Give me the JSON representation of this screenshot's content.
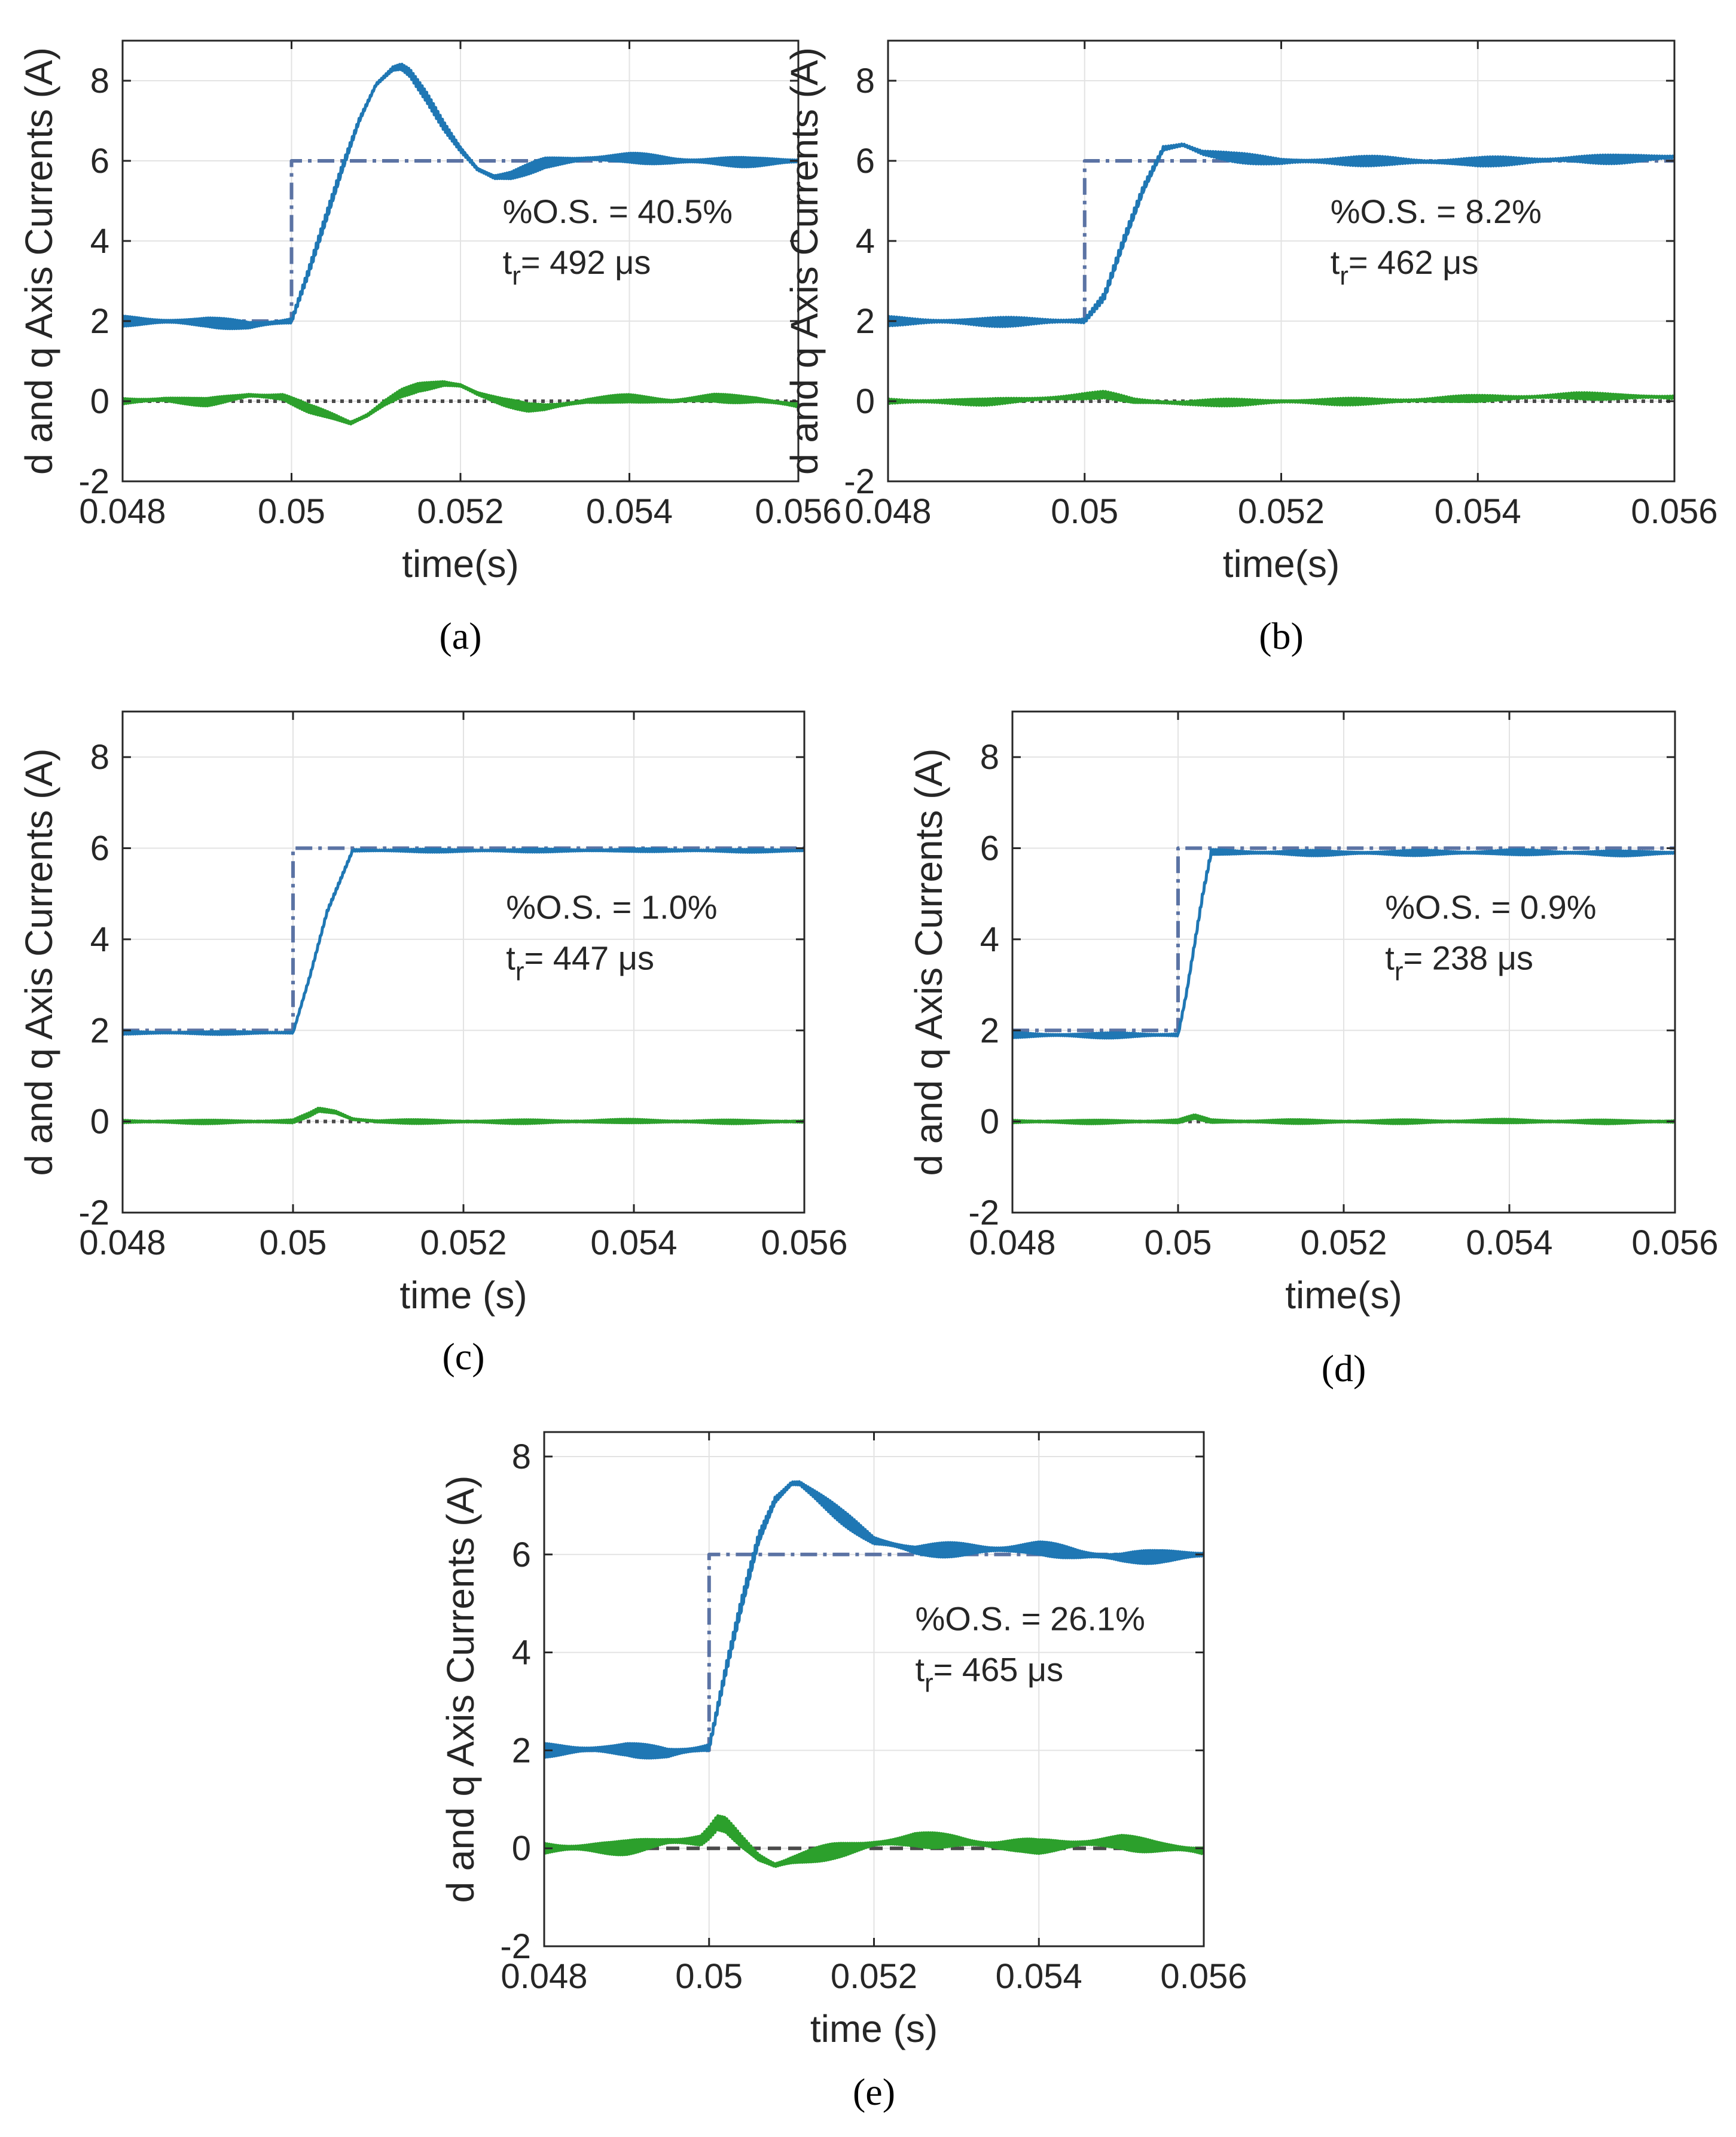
{
  "figure": {
    "colors": {
      "iq_actual": "#1f77b4",
      "iq_reference": "#5b73a4",
      "id_actual": "#2ca02c",
      "id_reference": "#4a4a4a",
      "grid": "#e3e3e3",
      "axis": "#262626"
    }
  },
  "chart_data": [
    {
      "id": "a",
      "type": "line",
      "caption": "(a)",
      "xlabel": "time(s)",
      "ylabel": "d and q Axis Currents (A)",
      "xlim": [
        0.048,
        0.056
      ],
      "ylim": [
        -2,
        9
      ],
      "xticks": [
        0.048,
        0.05,
        0.052,
        0.054,
        0.056
      ],
      "xtick_labels": [
        "0.048",
        "0.05",
        "0.052",
        "0.054",
        "0.056"
      ],
      "yticks": [
        -2,
        0,
        2,
        4,
        6,
        8
      ],
      "ytick_labels": [
        "-2",
        "0",
        "2",
        "4",
        "6",
        "8"
      ],
      "grid": true,
      "annotation": {
        "os_text": "%O.S. = 40.5%",
        "tr_prefix": "t",
        "tr_sub": "r",
        "tr_rest": "= 492 μs"
      },
      "series": [
        {
          "name": "iq reference",
          "style": "dashdot",
          "color_key": "iq_reference",
          "x": [
            0.048,
            0.05,
            0.05,
            0.056
          ],
          "y": [
            2,
            2,
            6,
            6
          ]
        },
        {
          "name": "id reference",
          "style": "dotted",
          "color_key": "id_reference",
          "x": [
            0.048,
            0.056
          ],
          "y": [
            0,
            0
          ]
        },
        {
          "name": "iq actual",
          "style": "solid",
          "color_key": "iq_actual",
          "x": [
            0.048,
            0.0485,
            0.049,
            0.0495,
            0.05,
            0.0502,
            0.0504,
            0.0506,
            0.0508,
            0.051,
            0.0512,
            0.0513,
            0.0514,
            0.0516,
            0.0518,
            0.052,
            0.0522,
            0.0524,
            0.0526,
            0.0528,
            0.053,
            0.0535,
            0.054,
            0.0545,
            0.055,
            0.0555,
            0.056
          ],
          "y": [
            2.0,
            2.0,
            2.0,
            1.9,
            2.0,
            3.2,
            4.5,
            5.8,
            7.0,
            7.9,
            8.3,
            8.35,
            8.2,
            7.6,
            6.9,
            6.3,
            5.8,
            5.6,
            5.65,
            5.8,
            5.95,
            6.05,
            6.05,
            6.0,
            6.0,
            6.0,
            6.0
          ],
          "ripple": 0.15
        },
        {
          "name": "id actual",
          "style": "solid",
          "color_key": "id_actual",
          "x": [
            0.048,
            0.0485,
            0.049,
            0.0495,
            0.0499,
            0.0502,
            0.0505,
            0.0507,
            0.0509,
            0.0511,
            0.0513,
            0.0515,
            0.0518,
            0.052,
            0.0522,
            0.0525,
            0.0528,
            0.053,
            0.0535,
            0.054,
            0.0545,
            0.055,
            0.0555,
            0.056
          ],
          "y": [
            0.0,
            0.05,
            0.0,
            0.15,
            0.1,
            -0.2,
            -0.4,
            -0.55,
            -0.35,
            -0.05,
            0.2,
            0.35,
            0.45,
            0.4,
            0.2,
            0.0,
            -0.15,
            -0.15,
            0.0,
            0.05,
            0.0,
            0.1,
            0.05,
            -0.1
          ],
          "ripple": 0.12
        }
      ]
    },
    {
      "id": "b",
      "type": "line",
      "caption": "(b)",
      "xlabel": "time(s)",
      "ylabel": "d and q Axis Currents (A)",
      "xlim": [
        0.048,
        0.056
      ],
      "ylim": [
        -2,
        9
      ],
      "xticks": [
        0.048,
        0.05,
        0.052,
        0.054,
        0.056
      ],
      "xtick_labels": [
        "0.048",
        "0.05",
        "0.052",
        "0.054",
        "0.056"
      ],
      "yticks": [
        -2,
        0,
        2,
        4,
        6,
        8
      ],
      "ytick_labels": [
        "-2",
        "0",
        "2",
        "4",
        "6",
        "8"
      ],
      "grid": true,
      "annotation": {
        "os_text": "%O.S. = 8.2%",
        "tr_prefix": "t",
        "tr_sub": "r",
        "tr_rest": "= 462 μs"
      },
      "series": [
        {
          "name": "iq reference",
          "style": "dashdot",
          "color_key": "iq_reference",
          "x": [
            0.048,
            0.05,
            0.05,
            0.056
          ],
          "y": [
            2,
            2,
            6,
            6
          ]
        },
        {
          "name": "id reference",
          "style": "dotted",
          "color_key": "id_reference",
          "x": [
            0.048,
            0.056
          ],
          "y": [
            0,
            0
          ]
        },
        {
          "name": "iq actual",
          "style": "solid",
          "color_key": "iq_actual",
          "x": [
            0.048,
            0.049,
            0.05,
            0.0502,
            0.0504,
            0.0506,
            0.0508,
            0.051,
            0.0512,
            0.0515,
            0.052,
            0.053,
            0.054,
            0.055,
            0.056
          ],
          "y": [
            2.0,
            2.0,
            2.0,
            2.6,
            4.0,
            5.3,
            6.3,
            6.4,
            6.2,
            6.1,
            6.0,
            6.0,
            5.95,
            6.05,
            6.1
          ],
          "ripple": 0.14
        },
        {
          "name": "id actual",
          "style": "solid",
          "color_key": "id_actual",
          "x": [
            0.048,
            0.049,
            0.0499,
            0.0502,
            0.0505,
            0.051,
            0.052,
            0.053,
            0.054,
            0.055,
            0.056
          ],
          "y": [
            0.0,
            0.0,
            0.1,
            0.15,
            0.0,
            -0.05,
            0.0,
            0.0,
            0.05,
            0.15,
            0.1
          ],
          "ripple": 0.1
        }
      ]
    },
    {
      "id": "c",
      "type": "line",
      "caption": "(c)",
      "xlabel": "time (s)",
      "ylabel": "d and q Axis Currents (A)",
      "xlim": [
        0.048,
        0.056
      ],
      "ylim": [
        -2,
        9
      ],
      "xticks": [
        0.048,
        0.05,
        0.052,
        0.054,
        0.056
      ],
      "xtick_labels": [
        "0.048",
        "0.05",
        "0.052",
        "0.054",
        "0.056"
      ],
      "yticks": [
        -2,
        0,
        2,
        4,
        6,
        8
      ],
      "ytick_labels": [
        "-2",
        "0",
        "2",
        "4",
        "6",
        "8"
      ],
      "grid": true,
      "annotation": {
        "os_text": "%O.S. = 1.0%",
        "tr_prefix": "t",
        "tr_sub": "r",
        "tr_rest": "= 447 μs"
      },
      "series": [
        {
          "name": "iq reference",
          "style": "dashdot",
          "color_key": "iq_reference",
          "x": [
            0.048,
            0.05,
            0.05,
            0.056
          ],
          "y": [
            2,
            2,
            6,
            6
          ]
        },
        {
          "name": "id reference",
          "style": "dotted",
          "color_key": "id_reference",
          "x": [
            0.048,
            0.056
          ],
          "y": [
            0,
            0
          ]
        },
        {
          "name": "iq actual",
          "style": "solid",
          "color_key": "iq_actual",
          "x": [
            0.048,
            0.049,
            0.05,
            0.0502,
            0.0504,
            0.0507,
            0.051,
            0.052,
            0.053,
            0.054,
            0.055,
            0.056
          ],
          "y": [
            1.95,
            1.95,
            1.95,
            3.2,
            4.6,
            5.95,
            5.95,
            5.95,
            5.95,
            5.95,
            5.95,
            5.95
          ],
          "ripple": 0.04
        },
        {
          "name": "id actual",
          "style": "solid",
          "color_key": "id_actual",
          "x": [
            0.048,
            0.049,
            0.05,
            0.0502,
            0.0503,
            0.0505,
            0.0507,
            0.051,
            0.052,
            0.053,
            0.054,
            0.055,
            0.056
          ],
          "y": [
            0.0,
            0.0,
            0.0,
            0.15,
            0.25,
            0.2,
            0.05,
            0.0,
            0.0,
            0.0,
            0.0,
            0.0,
            0.0
          ],
          "ripple": 0.05
        }
      ]
    },
    {
      "id": "d",
      "type": "line",
      "caption": "(d)",
      "xlabel": "time(s)",
      "ylabel": "d and q Axis Currents (A)",
      "xlim": [
        0.048,
        0.056
      ],
      "ylim": [
        -2,
        9
      ],
      "xticks": [
        0.048,
        0.05,
        0.052,
        0.054,
        0.056
      ],
      "xtick_labels": [
        "0.048",
        "0.05",
        "0.052",
        "0.054",
        "0.056"
      ],
      "yticks": [
        -2,
        0,
        2,
        4,
        6,
        8
      ],
      "ytick_labels": [
        "-2",
        "0",
        "2",
        "4",
        "6",
        "8"
      ],
      "grid": true,
      "annotation": {
        "os_text": "%O.S. = 0.9%",
        "tr_prefix": "t",
        "tr_sub": "r",
        "tr_rest": "= 238 μs"
      },
      "series": [
        {
          "name": "iq reference",
          "style": "dashdot",
          "color_key": "iq_reference",
          "x": [
            0.048,
            0.05,
            0.05,
            0.056
          ],
          "y": [
            2,
            2,
            6,
            6
          ]
        },
        {
          "name": "id reference",
          "style": "dotted",
          "color_key": "id_reference",
          "x": [
            0.048,
            0.056
          ],
          "y": [
            0,
            0
          ]
        },
        {
          "name": "iq actual",
          "style": "solid",
          "color_key": "iq_actual",
          "x": [
            0.048,
            0.049,
            0.05,
            0.0501,
            0.0503,
            0.0504,
            0.051,
            0.052,
            0.053,
            0.054,
            0.055,
            0.056
          ],
          "y": [
            1.9,
            1.9,
            1.9,
            2.8,
            5.0,
            5.9,
            5.9,
            5.9,
            5.9,
            5.9,
            5.9,
            5.9
          ],
          "ripple": 0.07
        },
        {
          "name": "id actual",
          "style": "solid",
          "color_key": "id_actual",
          "x": [
            0.048,
            0.049,
            0.05,
            0.0502,
            0.0504,
            0.051,
            0.052,
            0.053,
            0.054,
            0.055,
            0.056
          ],
          "y": [
            0.0,
            0.0,
            0.0,
            0.1,
            0.0,
            0.0,
            0.0,
            0.0,
            0.0,
            0.0,
            0.0
          ],
          "ripple": 0.05
        }
      ]
    },
    {
      "id": "e",
      "type": "line",
      "caption": "(e)",
      "xlabel": "time (s)",
      "ylabel": "d and q Axis Currents (A)",
      "xlim": [
        0.048,
        0.056
      ],
      "ylim": [
        -2,
        8.5
      ],
      "xticks": [
        0.048,
        0.05,
        0.052,
        0.054,
        0.056
      ],
      "xtick_labels": [
        "0.048",
        "0.05",
        "0.052",
        "0.054",
        "0.056"
      ],
      "yticks": [
        -2,
        0,
        2,
        4,
        6,
        8
      ],
      "ytick_labels": [
        "-2",
        "0",
        "2",
        "4",
        "6",
        "8"
      ],
      "grid": true,
      "annotation": {
        "os_text": "%O.S. = 26.1%",
        "tr_prefix": "t",
        "tr_sub": "r",
        "tr_rest": "= 465 μs"
      },
      "series": [
        {
          "name": "iq reference",
          "style": "dashdot",
          "color_key": "iq_reference",
          "x": [
            0.048,
            0.05,
            0.05,
            0.056
          ],
          "y": [
            2,
            2,
            6,
            6
          ]
        },
        {
          "name": "id reference",
          "style": "dashed",
          "color_key": "id_reference",
          "x": [
            0.048,
            0.056
          ],
          "y": [
            0,
            0
          ]
        },
        {
          "name": "iq actual",
          "style": "solid",
          "color_key": "iq_actual",
          "x": [
            0.048,
            0.049,
            0.0495,
            0.05,
            0.0502,
            0.0504,
            0.0506,
            0.0508,
            0.051,
            0.0511,
            0.0513,
            0.0516,
            0.052,
            0.0525,
            0.053,
            0.054,
            0.0545,
            0.055,
            0.0555,
            0.056
          ],
          "y": [
            2.0,
            2.05,
            1.95,
            2.05,
            3.6,
            5.0,
            6.3,
            7.1,
            7.45,
            7.45,
            7.2,
            6.8,
            6.3,
            6.1,
            6.1,
            6.1,
            6.0,
            5.95,
            6.0,
            6.0
          ],
          "ripple": 0.17
        },
        {
          "name": "id actual",
          "style": "solid",
          "color_key": "id_actual",
          "x": [
            0.048,
            0.049,
            0.0495,
            0.0499,
            0.05,
            0.0501,
            0.0502,
            0.0504,
            0.0506,
            0.0508,
            0.051,
            0.0515,
            0.052,
            0.0525,
            0.053,
            0.0535,
            0.054,
            0.0545,
            0.055,
            0.0555,
            0.056
          ],
          "y": [
            0.0,
            0.05,
            0.15,
            0.15,
            0.3,
            0.5,
            0.45,
            0.1,
            -0.2,
            -0.35,
            -0.25,
            -0.05,
            0.1,
            0.2,
            0.15,
            0.05,
            0.0,
            0.1,
            0.15,
            0.05,
            -0.05
          ],
          "ripple": 0.18
        }
      ]
    }
  ]
}
